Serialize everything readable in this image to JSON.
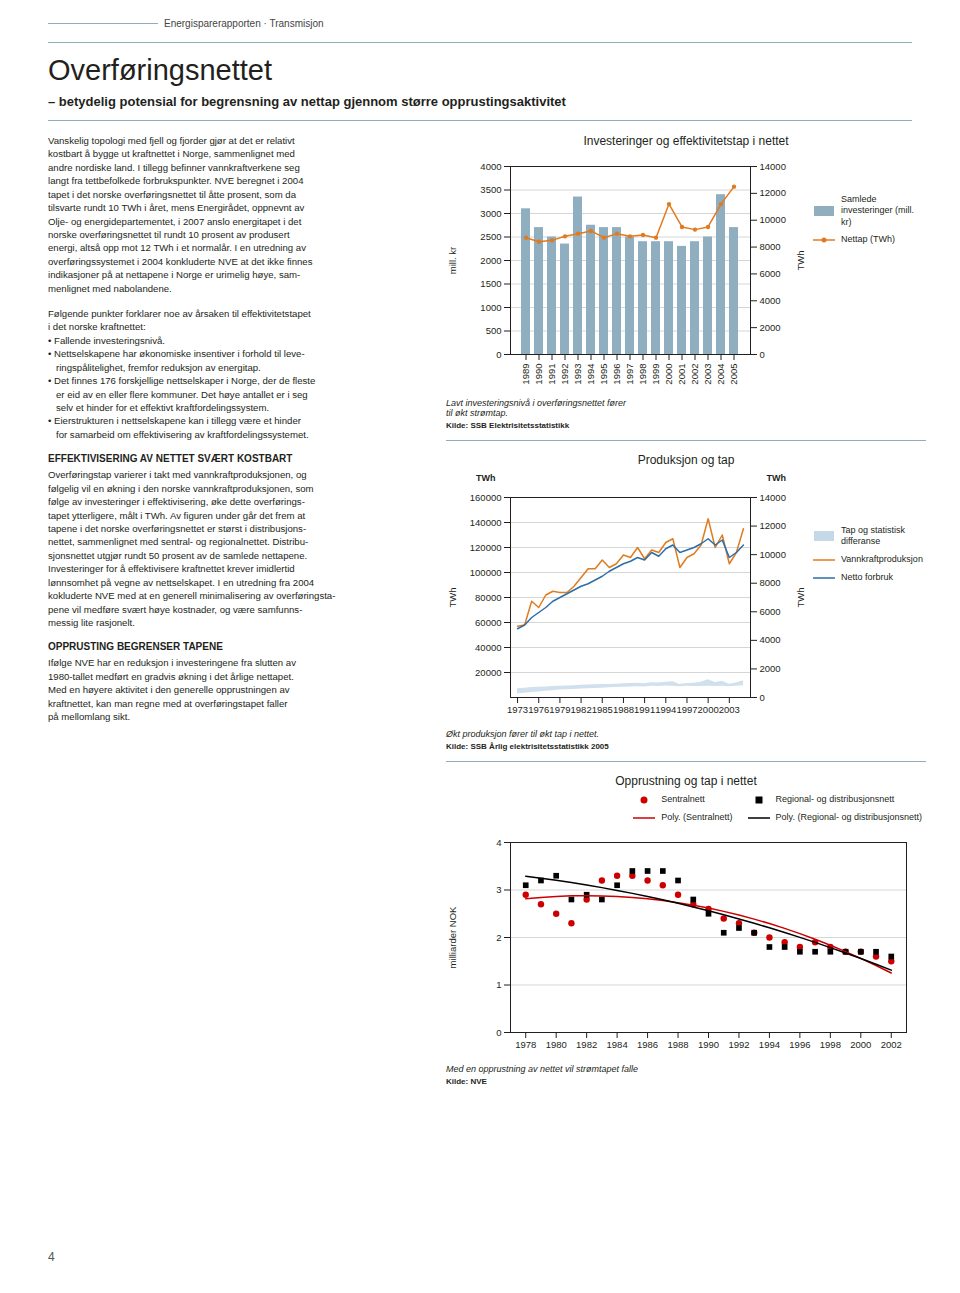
{
  "title": "Overføringsnettet",
  "subtitle": "– betydelig potensial for begrensning av nettap gjennom større opprustingsaktivitet",
  "header": "Energisparerapporten · Transmisjon",
  "page_number": "4",
  "sections": [
    {
      "text": "Vanskelig topologi med fjell og fjorder gjør at det er relativt\nkostbart å bygge ut kraftnettet i Norge, sammenlignet med\nandre nordiske land. I tillegg befinner vannkraftverkene seg\nlangt fra tettbefolkede forbrukspunkter. NVE beregnet i 2004\ntapet i det norske overføringsnettet til åtte prosent, som da\ntilsvarte rundt 10 TWh i året, mens Energirådet, oppnevnt av\nOlje- og energidepartementet, i 2007 anslo energitapet i det\nnorske overføringsnettet til rundt 10 prosent av produsert\nenergi, altså opp mot 12 TWh i et normalår. I en utredning av\noverføringssystemet i 2004 konkluderte NVE at det ikke finnes\nindikasjoner på at nettapene i Norge er urimelig høye, sam-\nmenlignet med nabolandene."
    },
    {
      "text": "Følgende punkter forklarer noe av årsaken til effektivitetstapet\ni det norske kraftnettet:\n• Fallende investeringsnivå.\n• Nettselskapene har økonomiske insentiver i forhold til leve-\n   ringspålitelighet, fremfor reduksjon av energitap.\n• Det finnes 176 forskjellige nettselskaper i Norge, der de fleste\n   er eid av en eller flere kommuner. Det høye antallet er i seg\n   selv et hinder for et effektivt kraftfordelingssystem.\n• Eierstrukturen i nettselskapene kan i tillegg være et hinder\n   for samarbeid om effektivisering av kraftfordelingssystemet."
    },
    {
      "title": "EFFEKTIVISERING AV NETTET SVÆRT KOSTBART",
      "text": "Overføringstap varierer i takt med vannkraftproduksjonen, og\nfølgelig vil en økning i den norske vannkraftproduksjonen, som\nfølge av investeringer i effektivisering, øke dette overførings-\ntapet ytterligere, målt i TWh. Av figuren under går det frem at\ntapene i det norske overføringsnettet er størst i distribusjons-\nnettet, sammenlignet med sentral- og regionalnettet. Distribu-\nsjonsnettet utgjør rundt 50 prosent av de samlede nettapene.\nInvesteringer for å effektivisere kraftnettet krever imidlertid\nlønnsomhet på vegne av nettselskapet. I en utredning fra 2004\nkokluderte NVE med at en generell minimalisering av overføringsta-\npene vil medføre svært høye kostnader, og være samfunns-\nmessig lite rasjonelt."
    },
    {
      "title": "OPPRUSTING BEGRENSER TAPENE",
      "text": "Ifølge NVE har en reduksjon i investeringene fra slutten av\n1980-tallet medført en gradvis økning i det årlige nettapet.\nMed en høyere aktivitet i den generelle opprustningen av\nkraftnettet, kan man regne med at overføringstapet faller\npå mellomlang sikt."
    }
  ],
  "chart_data": [
    {
      "type": "bar",
      "title": "Investeringer og effektivitetstap i nettet",
      "categories": [
        "1989",
        "1990",
        "1991",
        "1992",
        "1993",
        "1994",
        "1995",
        "1996",
        "1997",
        "1998",
        "1999",
        "2000",
        "2001",
        "2002",
        "2003",
        "2004",
        "2005"
      ],
      "series": [
        {
          "name": "Samlede\ninvesteringer (mill. kr)",
          "type": "bar",
          "color": "#8faebf",
          "values": [
            3100,
            2700,
            2500,
            2350,
            3350,
            2750,
            2700,
            2700,
            2500,
            2400,
            2400,
            2400,
            2300,
            2400,
            2500,
            3400,
            2700
          ]
        },
        {
          "name": "Nettap (TWh)",
          "type": "line",
          "axis": "y2",
          "color": "#e07b20",
          "marker": "circle",
          "values": [
            8700,
            8400,
            8500,
            8800,
            9000,
            9200,
            8700,
            9000,
            8800,
            8900,
            8700,
            11200,
            9500,
            9300,
            9500,
            11200,
            12500
          ]
        }
      ],
      "ylabel": "mill. kr",
      "ylim": [
        0,
        4000
      ],
      "yticks": [
        0,
        500,
        1000,
        1500,
        2000,
        2500,
        3000,
        3500,
        4000
      ],
      "y2label": "TWh",
      "y2lim": [
        0,
        14000
      ],
      "y2ticks": [
        0,
        2000,
        4000,
        6000,
        8000,
        10000,
        12000,
        14000
      ],
      "grid": true,
      "legend": "right",
      "caption": "Lavt investeringsnivå i overføringsnettet fører\ntil økt strømtap.",
      "source": "Kilde: SSB Elektrisitetsstatistikk"
    },
    {
      "type": "line",
      "title": "Produksjon og tap",
      "x": [
        1973,
        1974,
        1975,
        1976,
        1977,
        1978,
        1979,
        1980,
        1981,
        1982,
        1983,
        1984,
        1985,
        1986,
        1987,
        1988,
        1989,
        1990,
        1991,
        1992,
        1993,
        1994,
        1995,
        1996,
        1997,
        1998,
        1999,
        2000,
        2001,
        2002,
        2003,
        2004,
        2005
      ],
      "xlim": [
        1972,
        2006
      ],
      "xticks": [
        1973,
        1976,
        1979,
        1982,
        1985,
        1988,
        1991,
        1994,
        1997,
        2000,
        2003
      ],
      "series": [
        {
          "name": "Tap og statistisk\ndifferanse",
          "type": "area",
          "color": "#c5d8e8",
          "low": [
            3000,
            3500,
            4000,
            4500,
            5000,
            5500,
            6000,
            6200,
            6500,
            6800,
            7000,
            7200,
            7500,
            7800,
            8000,
            8200,
            8400,
            8600,
            8500,
            9000,
            8800,
            9200,
            9100,
            8700,
            9000,
            8900,
            8800,
            9000,
            8800,
            9000,
            8700,
            9000,
            9500
          ],
          "high": [
            7000,
            7500,
            8000,
            8200,
            8500,
            8800,
            9000,
            9200,
            9500,
            9800,
            10000,
            10200,
            10500,
            10500,
            10700,
            11000,
            11200,
            11500,
            11000,
            11800,
            11600,
            12200,
            12700,
            10400,
            11200,
            11500,
            12200,
            14300,
            12000,
            13000,
            10700,
            11600,
            13500
          ]
        },
        {
          "name": "Vannkraftproduksjon",
          "type": "line",
          "color": "#e07b20",
          "values": [
            57000,
            58000,
            77000,
            72000,
            82000,
            85000,
            84000,
            84000,
            89000,
            96000,
            103000,
            103000,
            110000,
            104000,
            107000,
            114000,
            112000,
            120000,
            111000,
            118000,
            116000,
            124000,
            127000,
            104000,
            112000,
            115000,
            122000,
            143000,
            120000,
            130000,
            107000,
            116000,
            135000
          ]
        },
        {
          "name": "Netto forbruk",
          "type": "line",
          "color": "#2e6ea6",
          "values": [
            55000,
            58000,
            64000,
            68000,
            72000,
            77000,
            80000,
            83000,
            86000,
            89000,
            91000,
            94000,
            97000,
            101000,
            104000,
            107000,
            109000,
            112000,
            110000,
            116000,
            113000,
            119000,
            122000,
            116000,
            118000,
            120000,
            123000,
            127000,
            122000,
            126000,
            112000,
            116000,
            122000
          ]
        }
      ],
      "ylabel": "TWh",
      "ylim": [
        0,
        160000
      ],
      "yticks": [
        20000,
        40000,
        60000,
        80000,
        100000,
        120000,
        140000,
        160000
      ],
      "y2label": "TWh",
      "y2lim": [
        0,
        14000
      ],
      "y2ticks": [
        0,
        2000,
        4000,
        6000,
        8000,
        10000,
        12000,
        14000
      ],
      "annotations": [
        "TWh",
        "TWh"
      ],
      "grid": true,
      "legend": "right",
      "caption": "Økt produksjon fører til økt tap i nettet.",
      "source": "Kilde: SSB Årlig elektrisitetsstatistikk 2005"
    },
    {
      "type": "scatter",
      "title": "Opprustning og tap i nettet",
      "x": [
        1978,
        1979,
        1980,
        1981,
        1982,
        1983,
        1984,
        1985,
        1986,
        1987,
        1988,
        1989,
        1990,
        1991,
        1992,
        1993,
        1994,
        1995,
        1996,
        1997,
        1998,
        1999,
        2000,
        2001,
        2002
      ],
      "xlim": [
        1977,
        2003
      ],
      "xticks": [
        1978,
        1980,
        1982,
        1984,
        1986,
        1988,
        1990,
        1992,
        1994,
        1996,
        1998,
        2000,
        2002
      ],
      "series": [
        {
          "name": "Sentralnett",
          "type": "scatter",
          "marker": "circle",
          "color": "#cc0000",
          "values": [
            2.9,
            2.7,
            2.5,
            2.3,
            2.8,
            3.2,
            3.3,
            3.3,
            3.2,
            3.1,
            2.9,
            2.7,
            2.6,
            2.4,
            2.3,
            2.1,
            2.0,
            1.9,
            1.8,
            1.9,
            1.8,
            1.7,
            1.7,
            1.6,
            1.5
          ]
        },
        {
          "name": "Regional- og distribusjonsnett",
          "type": "scatter",
          "marker": "square",
          "color": "#000000",
          "values": [
            3.1,
            3.2,
            3.3,
            2.8,
            2.9,
            2.8,
            3.1,
            3.4,
            3.4,
            3.4,
            3.2,
            2.8,
            2.5,
            2.1,
            2.2,
            2.1,
            1.8,
            1.8,
            1.7,
            1.7,
            1.7,
            1.7,
            1.7,
            1.7,
            1.6
          ]
        },
        {
          "name": "Poly. (Sentralnett)",
          "type": "line",
          "color": "#cc0000",
          "values": [
            2.816,
            2.8443,
            2.8645,
            2.8765,
            2.8805,
            2.8763,
            2.8639,
            2.8435,
            2.8149,
            2.7782,
            2.7334,
            2.6804,
            2.6193,
            2.5501,
            2.4727,
            2.3873,
            2.2937,
            2.1919,
            2.0821,
            1.9641,
            1.838,
            1.7038,
            1.5614,
            1.4109,
            1.2523
          ]
        },
        {
          "name": "Poly. (Regional- og distribusjonsnett)",
          "type": "line",
          "color": "#000000",
          "values": [
            3.2903,
            3.2495,
            3.2051,
            3.157,
            3.1054,
            3.0501,
            2.9912,
            2.9287,
            2.8626,
            2.7929,
            2.7195,
            2.6426,
            2.562,
            2.4778,
            2.39,
            2.2986,
            2.2035,
            2.1049,
            2.0026,
            1.8967,
            1.7872,
            1.6741,
            1.5574,
            1.437,
            1.3131
          ]
        }
      ],
      "ylabel": "milliarder NOK",
      "ylim": [
        0,
        4
      ],
      "yticks": [
        0,
        1,
        2,
        3,
        4
      ],
      "grid": true,
      "legend": "upper right",
      "caption": "Med en opprustning av nettet vil strømtapet falle",
      "source": "Kilde: NVE"
    }
  ]
}
